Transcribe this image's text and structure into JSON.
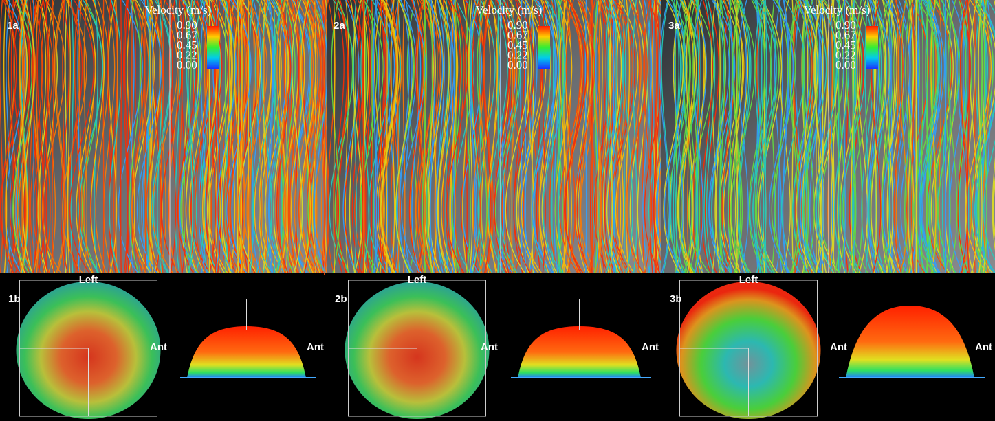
{
  "panels": [
    {
      "top": {
        "label": "1a",
        "legend": {
          "title": "Velocity (m/s)",
          "ticks": [
            "0.90",
            "0.67",
            "0.45",
            "0.22",
            "0.00"
          ]
        }
      },
      "bottom": {
        "label": "1b",
        "left": "Left",
        "ant_left": "Ant",
        "ant_right": "Ant"
      }
    },
    {
      "top": {
        "label": "2a",
        "legend": {
          "title": "Velocity (m/s)",
          "ticks": [
            "0.90",
            "0.67",
            "0.45",
            "0.22",
            "0.00"
          ]
        }
      },
      "bottom": {
        "label": "2b",
        "left": "Left",
        "ant_left": "Ant",
        "ant_right": "Ant"
      }
    },
    {
      "top": {
        "label": "3a",
        "legend": {
          "title": "Velocity (m/s)",
          "ticks": [
            "0.90",
            "0.67",
            "0.45",
            "0.22",
            "0.00"
          ]
        }
      },
      "bottom": {
        "label": "3b",
        "left": "Left",
        "ant_left": "Ant",
        "ant_right": "Ant"
      }
    }
  ]
}
